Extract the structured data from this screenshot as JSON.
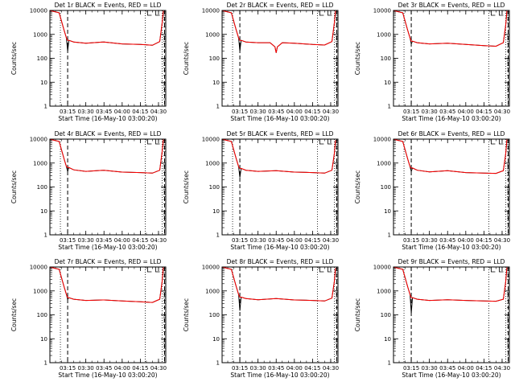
{
  "chart_data": [
    {
      "type": "line",
      "title": "Det 1r BLACK = Events, RED = LLD",
      "xlabel": "Start Time (16-May-10 03:00:20)",
      "ylabel": "Counts/sec",
      "x_ticks": [
        "03:15",
        "03:30",
        "03:45",
        "04:00",
        "04:15",
        "04:30"
      ],
      "y_ticks": [
        "1",
        "10",
        "100",
        "1000",
        "10000"
      ],
      "ylim": [
        1,
        10000
      ],
      "ylog": true,
      "grid": false,
      "series": [
        {
          "color": "#000000",
          "x": [
            "03:00",
            "03:08",
            "03:12",
            "03:14",
            "03:15",
            "03:16",
            "03:20",
            "03:30",
            "03:45",
            "04:00",
            "04:15",
            "04:25",
            "04:31",
            "04:33",
            "04:34"
          ],
          "y": [
            14000,
            8000,
            1500,
            700,
            200,
            560,
            480,
            430,
            480,
            400,
            380,
            350,
            500,
            3000,
            12000
          ]
        },
        {
          "color": "#ff0000",
          "x": [
            "03:00",
            "03:08",
            "03:12",
            "03:14",
            "03:15",
            "03:16",
            "03:20",
            "03:30",
            "03:45",
            "04:00",
            "04:15",
            "04:25",
            "04:31",
            "04:33",
            "04:34"
          ],
          "y": [
            14000,
            8000,
            1500,
            700,
            560,
            560,
            480,
            430,
            480,
            400,
            380,
            350,
            500,
            3000,
            12000
          ]
        }
      ]
    },
    {
      "type": "line",
      "title": "Det 2r BLACK = Events, RED = LLD",
      "xlabel": "Start Time (16-May-10 03:00:20)",
      "ylabel": "Counts/sec",
      "x_ticks": [
        "03:15",
        "03:30",
        "03:45",
        "04:00",
        "04:15",
        "04:30"
      ],
      "y_ticks": [
        "1",
        "10",
        "100",
        "1000",
        "10000"
      ],
      "ylim": [
        1,
        10000
      ],
      "ylog": true,
      "grid": false,
      "series": [
        {
          "color": "#000000",
          "x": [
            "03:00",
            "03:08",
            "03:12",
            "03:14",
            "03:15",
            "03:16",
            "03:20",
            "03:30",
            "03:40",
            "03:44",
            "03:45",
            "03:46",
            "03:50",
            "04:00",
            "04:15",
            "04:25",
            "04:31",
            "04:33",
            "04:34"
          ],
          "y": [
            14000,
            8000,
            1500,
            700,
            200,
            560,
            480,
            450,
            450,
            300,
            170,
            300,
            450,
            430,
            380,
            360,
            500,
            3000,
            12000
          ]
        },
        {
          "color": "#ff0000",
          "x": [
            "03:00",
            "03:08",
            "03:12",
            "03:14",
            "03:15",
            "03:16",
            "03:20",
            "03:30",
            "03:40",
            "03:44",
            "03:45",
            "03:46",
            "03:50",
            "04:00",
            "04:15",
            "04:25",
            "04:31",
            "04:33",
            "04:34"
          ],
          "y": [
            14000,
            8000,
            1500,
            700,
            560,
            560,
            480,
            450,
            450,
            300,
            170,
            300,
            450,
            430,
            380,
            360,
            500,
            3000,
            12000
          ]
        }
      ]
    },
    {
      "type": "line",
      "title": "Det 3r BLACK = Events, RED = LLD",
      "xlabel": "Start Time (16-May-10 03:00:20)",
      "ylabel": "Counts/sec",
      "x_ticks": [
        "03:15",
        "03:30",
        "03:45",
        "04:00",
        "04:15",
        "04:30"
      ],
      "y_ticks": [
        "1",
        "10",
        "100",
        "1000",
        "10000"
      ],
      "ylim": [
        1,
        10000
      ],
      "ylog": true,
      "grid": false,
      "series": [
        {
          "color": "#000000",
          "x": [
            "03:00",
            "03:08",
            "03:12",
            "03:14",
            "03:15",
            "03:16",
            "03:20",
            "03:30",
            "03:45",
            "04:00",
            "04:15",
            "04:25",
            "04:31",
            "04:33",
            "04:34"
          ],
          "y": [
            14000,
            8000,
            1500,
            700,
            400,
            520,
            450,
            400,
            430,
            380,
            340,
            320,
            450,
            2500,
            11000
          ]
        },
        {
          "color": "#ff0000",
          "x": [
            "03:00",
            "03:08",
            "03:12",
            "03:14",
            "03:15",
            "03:16",
            "03:20",
            "03:30",
            "03:45",
            "04:00",
            "04:15",
            "04:25",
            "04:31",
            "04:33",
            "04:34"
          ],
          "y": [
            14000,
            8000,
            1500,
            700,
            520,
            520,
            450,
            400,
            430,
            380,
            340,
            320,
            450,
            2500,
            11000
          ]
        }
      ]
    },
    {
      "type": "line",
      "title": "Det 4r BLACK = Events, RED = LLD",
      "xlabel": "Start Time (16-May-10 03:00:20)",
      "ylabel": "Counts/sec",
      "x_ticks": [
        "03:15",
        "03:30",
        "03:45",
        "04:00",
        "04:15",
        "04:30"
      ],
      "y_ticks": [
        "1",
        "10",
        "100",
        "1000",
        "10000"
      ],
      "ylim": [
        1,
        10000
      ],
      "ylog": true,
      "grid": false,
      "series": [
        {
          "color": "#000000",
          "x": [
            "03:00",
            "03:08",
            "03:12",
            "03:14",
            "03:15",
            "03:16",
            "03:20",
            "03:30",
            "03:45",
            "04:00",
            "04:15",
            "04:25",
            "04:31",
            "04:33",
            "04:34"
          ],
          "y": [
            14000,
            8000,
            1500,
            700,
            450,
            650,
            520,
            450,
            500,
            420,
            400,
            380,
            500,
            3000,
            12000
          ]
        },
        {
          "color": "#ff0000",
          "x": [
            "03:00",
            "03:08",
            "03:12",
            "03:14",
            "03:15",
            "03:16",
            "03:20",
            "03:30",
            "03:45",
            "04:00",
            "04:15",
            "04:25",
            "04:31",
            "04:33",
            "04:34"
          ],
          "y": [
            14000,
            8000,
            1500,
            700,
            650,
            650,
            520,
            450,
            500,
            420,
            400,
            380,
            500,
            3000,
            12000
          ]
        }
      ]
    },
    {
      "type": "line",
      "title": "Det 5r BLACK = Events, RED = LLD",
      "xlabel": "Start Time (16-May-10 03:00:20)",
      "ylabel": "Counts/sec",
      "x_ticks": [
        "03:15",
        "03:30",
        "03:45",
        "04:00",
        "04:15",
        "04:30"
      ],
      "y_ticks": [
        "1",
        "10",
        "100",
        "1000",
        "10000"
      ],
      "ylim": [
        1,
        10000
      ],
      "ylog": true,
      "grid": false,
      "series": [
        {
          "color": "#000000",
          "x": [
            "03:00",
            "03:08",
            "03:12",
            "03:14",
            "03:15",
            "03:16",
            "03:20",
            "03:30",
            "03:45",
            "04:00",
            "04:15",
            "04:25",
            "04:31",
            "04:33",
            "04:34"
          ],
          "y": [
            14000,
            8000,
            1500,
            700,
            250,
            600,
            500,
            450,
            480,
            420,
            400,
            380,
            500,
            2500,
            9000
          ]
        },
        {
          "color": "#ff0000",
          "x": [
            "03:00",
            "03:08",
            "03:12",
            "03:14",
            "03:15",
            "03:16",
            "03:20",
            "03:30",
            "03:45",
            "04:00",
            "04:15",
            "04:25",
            "04:31",
            "04:33",
            "04:34"
          ],
          "y": [
            14000,
            8000,
            1500,
            700,
            600,
            600,
            500,
            450,
            480,
            420,
            400,
            380,
            500,
            2500,
            9000
          ]
        }
      ]
    },
    {
      "type": "line",
      "title": "Det 6r BLACK = Events, RED = LLD",
      "xlabel": "Start Time (16-May-10 03:00:20)",
      "ylabel": "Counts/sec",
      "x_ticks": [
        "03:15",
        "03:30",
        "03:45",
        "04:00",
        "04:15",
        "04:30"
      ],
      "y_ticks": [
        "1",
        "10",
        "100",
        "1000",
        "10000"
      ],
      "ylim": [
        1,
        10000
      ],
      "ylog": true,
      "grid": false,
      "series": [
        {
          "color": "#000000",
          "x": [
            "03:00",
            "03:08",
            "03:12",
            "03:14",
            "03:15",
            "03:16",
            "03:20",
            "03:30",
            "03:45",
            "04:00",
            "04:15",
            "04:25",
            "04:31",
            "04:33",
            "04:34"
          ],
          "y": [
            14000,
            8000,
            1500,
            700,
            450,
            620,
            500,
            430,
            480,
            400,
            380,
            370,
            480,
            2500,
            10000
          ]
        },
        {
          "color": "#ff0000",
          "x": [
            "03:00",
            "03:08",
            "03:12",
            "03:14",
            "03:15",
            "03:16",
            "03:20",
            "03:30",
            "03:45",
            "04:00",
            "04:15",
            "04:25",
            "04:31",
            "04:33",
            "04:34"
          ],
          "y": [
            14000,
            8000,
            1500,
            700,
            620,
            620,
            500,
            430,
            480,
            400,
            380,
            370,
            480,
            2500,
            10000
          ]
        }
      ]
    },
    {
      "type": "line",
      "title": "Det 7r BLACK = Events, RED = LLD",
      "xlabel": "Start Time (16-May-10 03:00:20)",
      "ylabel": "Counts/sec",
      "x_ticks": [
        "03:15",
        "03:30",
        "03:45",
        "04:00",
        "04:15",
        "04:30"
      ],
      "y_ticks": [
        "1",
        "10",
        "100",
        "1000",
        "10000"
      ],
      "ylim": [
        1,
        10000
      ],
      "ylog": true,
      "grid": false,
      "series": [
        {
          "color": "#000000",
          "x": [
            "03:00",
            "03:08",
            "03:12",
            "03:14",
            "03:15",
            "03:16",
            "03:20",
            "03:30",
            "03:45",
            "04:00",
            "04:15",
            "04:25",
            "04:31",
            "04:33",
            "04:34"
          ],
          "y": [
            14000,
            8000,
            1500,
            700,
            450,
            520,
            450,
            400,
            420,
            380,
            350,
            330,
            450,
            2500,
            10000
          ]
        },
        {
          "color": "#ff0000",
          "x": [
            "03:00",
            "03:08",
            "03:12",
            "03:14",
            "03:15",
            "03:16",
            "03:20",
            "03:30",
            "03:45",
            "04:00",
            "04:15",
            "04:25",
            "04:31",
            "04:33",
            "04:34"
          ],
          "y": [
            14000,
            8000,
            1500,
            700,
            520,
            520,
            450,
            400,
            420,
            380,
            350,
            330,
            450,
            2500,
            10000
          ]
        }
      ]
    },
    {
      "type": "line",
      "title": "Det 8r BLACK = Events, RED = LLD",
      "xlabel": "Start Time (16-May-10 03:00:20)",
      "ylabel": "Counts/sec",
      "x_ticks": [
        "03:15",
        "03:30",
        "03:45",
        "04:00",
        "04:15",
        "04:30"
      ],
      "y_ticks": [
        "1",
        "10",
        "100",
        "1000",
        "10000"
      ],
      "ylim": [
        1,
        10000
      ],
      "ylog": true,
      "grid": false,
      "series": [
        {
          "color": "#000000",
          "x": [
            "03:00",
            "03:08",
            "03:12",
            "03:14",
            "03:15",
            "03:16",
            "03:20",
            "03:30",
            "03:45",
            "04:00",
            "04:15",
            "04:25",
            "04:31",
            "04:33",
            "04:34"
          ],
          "y": [
            14000,
            8000,
            1500,
            700,
            150,
            550,
            480,
            430,
            480,
            420,
            400,
            380,
            500,
            2500,
            9000
          ]
        },
        {
          "color": "#ff0000",
          "x": [
            "03:00",
            "03:08",
            "03:12",
            "03:14",
            "03:15",
            "03:16",
            "03:20",
            "03:30",
            "03:45",
            "04:00",
            "04:15",
            "04:25",
            "04:31",
            "04:33",
            "04:34"
          ],
          "y": [
            14000,
            8000,
            1500,
            700,
            550,
            550,
            480,
            430,
            480,
            420,
            400,
            380,
            500,
            2500,
            9000
          ]
        }
      ]
    },
    {
      "type": "line",
      "title": "Det 9r BLACK = Events, RED = LLD",
      "xlabel": "Start Time (16-May-10 03:00:20)",
      "ylabel": "Counts/sec",
      "x_ticks": [
        "03:15",
        "03:30",
        "03:45",
        "04:00",
        "04:15",
        "04:30"
      ],
      "y_ticks": [
        "1",
        "10",
        "100",
        "1000",
        "10000"
      ],
      "ylim": [
        1,
        10000
      ],
      "ylog": true,
      "grid": false,
      "series": [
        {
          "color": "#000000",
          "x": [
            "03:00",
            "03:08",
            "03:12",
            "03:14",
            "03:15",
            "03:16",
            "03:20",
            "03:30",
            "03:45",
            "04:00",
            "04:15",
            "04:25",
            "04:31",
            "04:33",
            "04:34"
          ],
          "y": [
            14000,
            8000,
            1500,
            700,
            120,
            520,
            450,
            400,
            430,
            400,
            380,
            370,
            450,
            2500,
            10000
          ]
        },
        {
          "color": "#ff0000",
          "x": [
            "03:00",
            "03:08",
            "03:12",
            "03:14",
            "03:15",
            "03:16",
            "03:20",
            "03:30",
            "03:45",
            "04:00",
            "04:15",
            "04:25",
            "04:31",
            "04:33",
            "04:34"
          ],
          "y": [
            14000,
            8000,
            1500,
            700,
            520,
            520,
            450,
            400,
            430,
            400,
            380,
            370,
            450,
            2500,
            10000
          ]
        }
      ]
    }
  ]
}
